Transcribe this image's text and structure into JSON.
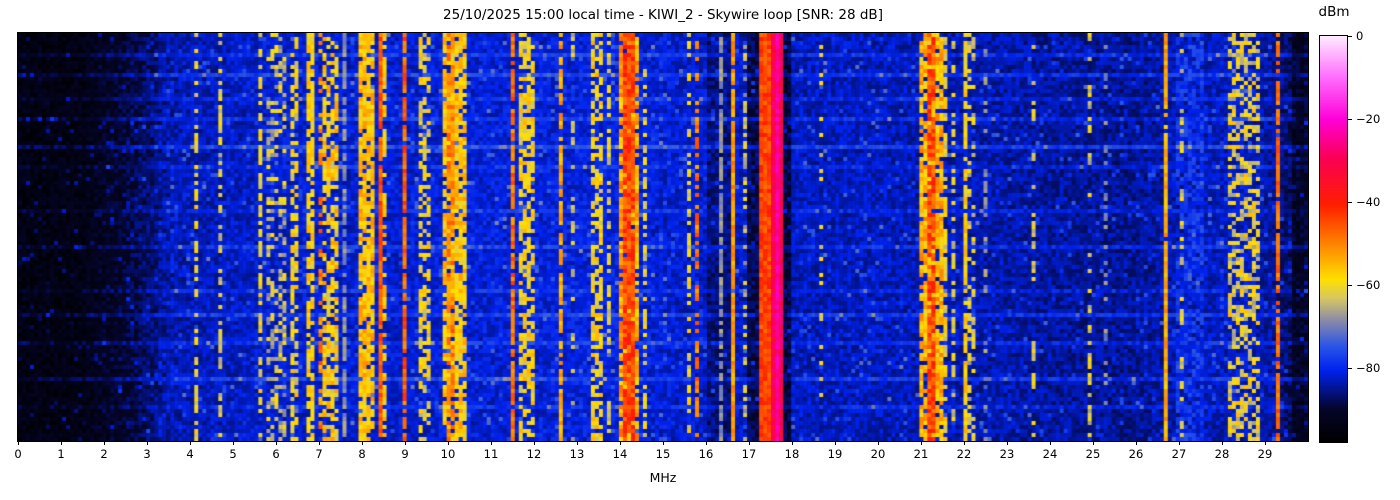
{
  "figure": {
    "title": "25/10/2025 15:00 local time - KIWI_2 - Skywire loop [SNR: 28 dB]",
    "xlabel": "MHz",
    "colorbar_label": "dBm"
  },
  "chart_data": {
    "type": "heatmap",
    "title": "25/10/2025 15:00 local time - KIWI_2 - Skywire loop [SNR: 28 dB]",
    "xlabel": "MHz",
    "x_range": [
      0,
      30
    ],
    "x_ticks": [
      0,
      1,
      2,
      3,
      4,
      5,
      6,
      7,
      8,
      9,
      10,
      11,
      12,
      13,
      14,
      15,
      16,
      17,
      18,
      19,
      20,
      21,
      22,
      23,
      24,
      25,
      26,
      27,
      28,
      29
    ],
    "x_tick_labels": [
      "0",
      "1",
      "2",
      "3",
      "4",
      "5",
      "6",
      "7",
      "8",
      "9",
      "10",
      "11",
      "12",
      "13",
      "14",
      "15",
      "16",
      "17",
      "18",
      "19",
      "20",
      "21",
      "22",
      "23",
      "24",
      "25",
      "26",
      "27",
      "28",
      "29"
    ],
    "y_axis": "time (no ticks shown)",
    "grid": false,
    "value_label": "dBm",
    "value_range": [
      -97.75,
      0
    ],
    "colorbar_ticks": [
      {
        "label": "0",
        "value": 0
      },
      {
        "label": "−20",
        "value": -20
      },
      {
        "label": "−40",
        "value": -40
      },
      {
        "label": "−60",
        "value": -60
      },
      {
        "label": "−80",
        "value": -80
      }
    ],
    "colormap_stops": [
      [
        0.0,
        "#000000"
      ],
      [
        0.08,
        "#05052a"
      ],
      [
        0.175,
        "#0022ee"
      ],
      [
        0.235,
        "#2a55e8"
      ],
      [
        0.3,
        "#8c8ca8"
      ],
      [
        0.355,
        "#d8c860"
      ],
      [
        0.4,
        "#ffe000"
      ],
      [
        0.48,
        "#ff8c00"
      ],
      [
        0.585,
        "#ff1e00"
      ],
      [
        0.7,
        "#fa0055"
      ],
      [
        0.795,
        "#ff00d8"
      ],
      [
        0.9,
        "#ff6eff"
      ],
      [
        1.0,
        "#ffeaff"
      ]
    ],
    "grid_cells": {
      "bins": 322,
      "rows": 102
    },
    "noise_floor_dbm": [
      [
        0,
        -96.5
      ],
      [
        1.5,
        -96
      ],
      [
        2.2,
        -94
      ],
      [
        3.0,
        -90
      ],
      [
        3.6,
        -87
      ],
      [
        4.5,
        -86
      ],
      [
        6,
        -85
      ],
      [
        9,
        -85
      ],
      [
        12,
        -84.5
      ],
      [
        14,
        -84
      ],
      [
        16,
        -85.5
      ],
      [
        18,
        -86
      ],
      [
        20,
        -86
      ],
      [
        22,
        -86.5
      ],
      [
        24,
        -87.5
      ],
      [
        26,
        -88
      ],
      [
        27,
        -86.5
      ],
      [
        28.5,
        -85.5
      ],
      [
        29.3,
        -88
      ],
      [
        29.9,
        -93
      ]
    ],
    "dark_bands": [
      [
        0.0,
        1.6,
        -97
      ],
      [
        16.0,
        16.6,
        -89
      ],
      [
        16.95,
        17.2,
        -91
      ],
      [
        17.82,
        17.98,
        -92
      ],
      [
        29.6,
        29.95,
        -94
      ]
    ],
    "elevated_noise_rows": [
      [
        0.045,
        4
      ],
      [
        0.1,
        5
      ],
      [
        0.155,
        3
      ],
      [
        0.205,
        4
      ],
      [
        0.27,
        6
      ],
      [
        0.325,
        3
      ],
      [
        0.435,
        3
      ],
      [
        0.52,
        4
      ],
      [
        0.625,
        3
      ],
      [
        0.685,
        5
      ],
      [
        0.755,
        4
      ],
      [
        0.845,
        5
      ],
      [
        0.915,
        3
      ]
    ],
    "signal_bands": [
      [
        3.3,
        4.3,
        -83,
        0.5,
        4
      ],
      [
        3.42,
        3.46,
        -70,
        0.3,
        3
      ],
      [
        3.79,
        3.83,
        -60,
        0.5,
        4
      ],
      [
        4.13,
        4.18,
        -60,
        0.5,
        4
      ],
      [
        4.45,
        4.49,
        -69,
        0.3,
        3
      ],
      [
        4.53,
        4.58,
        -58,
        0.9,
        3
      ],
      [
        4.68,
        4.73,
        -62,
        0.5,
        4
      ],
      [
        5.2,
        5.25,
        -58,
        0.9,
        3
      ],
      [
        5.36,
        5.4,
        -63,
        0.35,
        4
      ],
      [
        5.61,
        5.66,
        -60,
        0.6,
        4
      ],
      [
        5.8,
        6.25,
        -64,
        0.4,
        6
      ],
      [
        5.93,
        5.98,
        -60,
        0.6,
        4
      ],
      [
        6.33,
        6.48,
        -60,
        0.55,
        5
      ],
      [
        6.75,
        6.88,
        -58,
        0.75,
        4
      ],
      [
        6.98,
        7.04,
        -50,
        0.5,
        6
      ],
      [
        7.05,
        7.45,
        -58,
        0.6,
        6
      ],
      [
        7.58,
        7.62,
        -68,
        0.8,
        3
      ],
      [
        7.78,
        7.84,
        -62,
        0.4,
        4
      ],
      [
        7.95,
        8.27,
        -56,
        0.85,
        5
      ],
      [
        8.43,
        8.48,
        -46,
        0.9,
        4
      ],
      [
        8.52,
        8.6,
        -58,
        0.6,
        5
      ],
      [
        8.97,
        9.03,
        -47,
        0.85,
        5
      ],
      [
        9.3,
        9.62,
        -60,
        0.5,
        5
      ],
      [
        9.88,
        10.42,
        -57,
        0.8,
        5
      ],
      [
        9.98,
        10.12,
        -50,
        0.7,
        5
      ],
      [
        11.05,
        11.1,
        -62,
        0.4,
        4
      ],
      [
        11.47,
        11.53,
        -48,
        0.85,
        5
      ],
      [
        11.6,
        11.98,
        -59,
        0.6,
        5
      ],
      [
        12.58,
        12.64,
        -53,
        0.8,
        4
      ],
      [
        12.88,
        12.93,
        -64,
        0.3,
        4
      ],
      [
        13.33,
        13.62,
        -59,
        0.6,
        5
      ],
      [
        13.72,
        13.78,
        -62,
        0.45,
        4
      ],
      [
        13.95,
        14.45,
        -53,
        0.85,
        6
      ],
      [
        14.08,
        14.32,
        -44,
        0.9,
        6
      ],
      [
        14.58,
        14.65,
        -61,
        0.5,
        4
      ],
      [
        14.98,
        15.03,
        -63,
        0.3,
        4
      ],
      [
        15.52,
        15.62,
        -60,
        0.5,
        5
      ],
      [
        15.78,
        15.85,
        -49,
        0.45,
        5
      ],
      [
        16.02,
        16.06,
        -68,
        0.35,
        3
      ],
      [
        16.33,
        16.37,
        -68,
        0.85,
        3
      ],
      [
        16.62,
        16.68,
        -52,
        0.95,
        4
      ],
      [
        16.88,
        16.94,
        -64,
        0.4,
        5
      ],
      [
        17.22,
        17.47,
        -44,
        1.0,
        4
      ],
      [
        17.5,
        17.8,
        -30,
        1.0,
        4
      ],
      [
        17.58,
        17.74,
        -24,
        1.0,
        3
      ],
      [
        18.33,
        18.38,
        -68,
        0.35,
        3
      ],
      [
        18.68,
        18.73,
        -62,
        0.3,
        4
      ],
      [
        19.37,
        19.42,
        -60,
        0.55,
        4
      ],
      [
        19.91,
        19.96,
        -66,
        0.4,
        3
      ],
      [
        20.48,
        20.53,
        -68,
        0.85,
        3
      ],
      [
        20.98,
        21.48,
        -55,
        0.85,
        6
      ],
      [
        21.15,
        21.35,
        -44,
        0.8,
        6
      ],
      [
        21.52,
        21.6,
        -60,
        0.5,
        5
      ],
      [
        21.75,
        21.8,
        -62,
        0.35,
        4
      ],
      [
        22.02,
        22.08,
        -58,
        0.7,
        4
      ],
      [
        22.12,
        22.3,
        -63,
        0.4,
        5
      ],
      [
        22.5,
        22.54,
        -68,
        0.3,
        3
      ],
      [
        23.58,
        23.64,
        -62,
        0.35,
        4
      ],
      [
        24.83,
        24.95,
        -62,
        0.4,
        5
      ],
      [
        25.28,
        25.32,
        -69,
        0.3,
        3
      ],
      [
        26.64,
        26.7,
        -54,
        0.95,
        4
      ],
      [
        26.9,
        27.6,
        -79,
        0.7,
        4
      ],
      [
        27.06,
        27.12,
        -62,
        0.3,
        4
      ],
      [
        28.15,
        28.9,
        -61,
        0.5,
        6
      ],
      [
        29.27,
        29.32,
        -48,
        0.85,
        4
      ]
    ]
  }
}
